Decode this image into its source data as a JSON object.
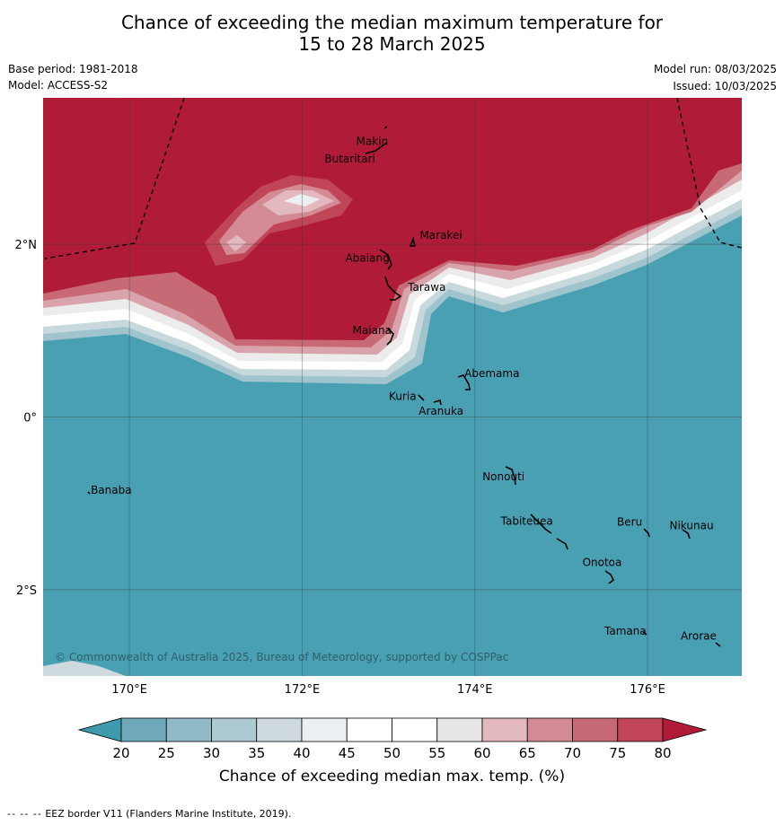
{
  "title": {
    "line1": "Chance of exceeding the median maximum temperature for",
    "line2": "15 to 28 March 2025"
  },
  "meta": {
    "base_period": "Base period: 1981-2018",
    "model": "Model: ACCESS-S2",
    "model_run": "Model run: 08/03/2025",
    "issued": "Issued: 10/03/2025"
  },
  "map": {
    "lon_range": [
      169,
      177.1
    ],
    "lat_range": [
      -3,
      3.7
    ],
    "lat_ticks": [
      {
        "value": 2,
        "label": "2°N"
      },
      {
        "value": 0,
        "label": "0°"
      },
      {
        "value": -2,
        "label": "2°S"
      }
    ],
    "lon_ticks": [
      {
        "value": 170,
        "label": "170°E"
      },
      {
        "value": 172,
        "label": "172°E"
      },
      {
        "value": 174,
        "label": "174°E"
      },
      {
        "value": 176,
        "label": "176°E"
      }
    ],
    "grid": true,
    "places": [
      {
        "name": "Makin",
        "lon": 173.0,
        "lat": 3.1
      },
      {
        "name": "Butaritari",
        "lon": 172.8,
        "lat": 3.0
      },
      {
        "name": "Marakei",
        "lon": 173.3,
        "lat": 2.0
      },
      {
        "name": "Abaiang",
        "lon": 173.0,
        "lat": 1.8
      },
      {
        "name": "Tarawa",
        "lon": 173.1,
        "lat": 1.4
      },
      {
        "name": "Maiana",
        "lon": 173.0,
        "lat": 0.9
      },
      {
        "name": "Abemama",
        "lon": 173.9,
        "lat": 0.4
      },
      {
        "name": "Kuria",
        "lon": 173.4,
        "lat": 0.2
      },
      {
        "name": "Aranuka",
        "lon": 173.6,
        "lat": 0.15
      },
      {
        "name": "Nonouti",
        "lon": 174.4,
        "lat": -0.7
      },
      {
        "name": "Banaba",
        "lon": 169.5,
        "lat": -0.9
      },
      {
        "name": "Tabiteuea",
        "lon": 174.8,
        "lat": -1.3
      },
      {
        "name": "Beru",
        "lon": 176.0,
        "lat": -1.3
      },
      {
        "name": "Nikunau",
        "lon": 176.4,
        "lat": -1.35
      },
      {
        "name": "Onotoa",
        "lon": 175.6,
        "lat": -1.8
      },
      {
        "name": "Tamana",
        "lon": 176.0,
        "lat": -2.5
      },
      {
        "name": "Arorae",
        "lon": 176.8,
        "lat": -2.6
      }
    ],
    "copyright": "© Commonwealth of Australia 2025, Bureau of Meteorology, supported by COSPPac"
  },
  "colorbar": {
    "ticks": [
      "20",
      "25",
      "30",
      "35",
      "40",
      "45",
      "50",
      "55",
      "60",
      "65",
      "70",
      "75",
      "80"
    ],
    "colors": [
      "#3f9aae",
      "#6fa9b9",
      "#8fbac6",
      "#adc9d1",
      "#cfdade",
      "#ebeff1",
      "#ffffff",
      "#ffffff",
      "#e6e6e6",
      "#e3b8bf",
      "#d48a94",
      "#c86a76",
      "#c04657",
      "#b01c37"
    ],
    "label": "Chance of exceeding median max. temp. (%)"
  },
  "footer": {
    "dash": "-- -- --",
    "text": "EEZ border V11 (Flanders Marine Institute, 2019)."
  }
}
